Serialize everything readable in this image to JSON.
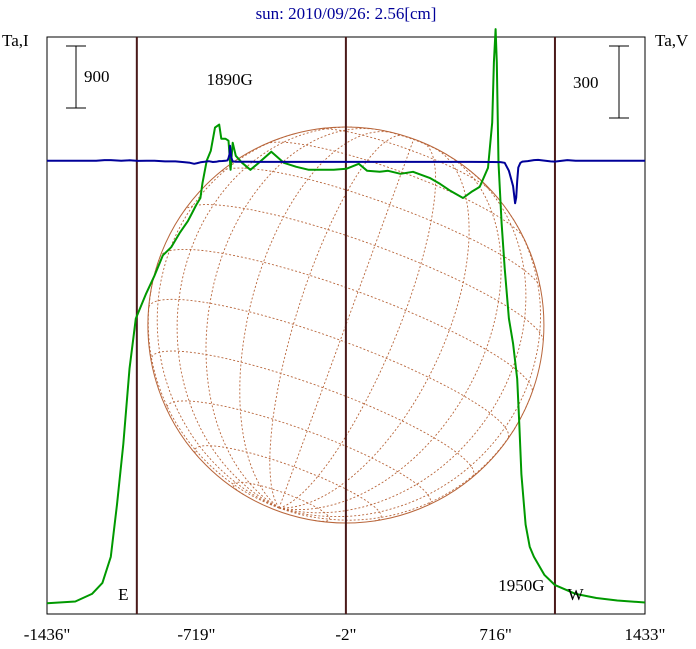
{
  "chart_data": {
    "type": "line",
    "title": "sun: 2010/09/26: 2.56[cm]",
    "left_axis_label": "Ta,I",
    "right_axis_label": "Ta,V",
    "scale_left": {
      "label": "900",
      "value": 900
    },
    "scale_right": {
      "label": "300",
      "value": 300
    },
    "x_range": [
      -1436,
      1433
    ],
    "x_ticks": [
      {
        "value": -1436,
        "label": "-1436\""
      },
      {
        "value": -719,
        "label": "-719\""
      },
      {
        "value": -2,
        "label": "-2\""
      },
      {
        "value": 716,
        "label": "716\""
      },
      {
        "value": 1433,
        "label": "1433\""
      }
    ],
    "vertical_lines": [
      -1005,
      -2,
      1001
    ],
    "annotations": [
      {
        "text": "1890G",
        "x": -560,
        "series": "V"
      },
      {
        "text": "1950G",
        "x": 840,
        "series": "V"
      },
      {
        "text": "E",
        "x": -1070,
        "series": "I"
      },
      {
        "text": "W",
        "x": 1100,
        "series": "I"
      }
    ],
    "disk": {
      "center_x": -2,
      "radius": 950,
      "color": "#b8653a"
    },
    "colors": {
      "stokes_I": "#009900",
      "stokes_V": "#000099",
      "vertical_lines": "#4a1a1a",
      "frame": "#000000"
    },
    "series": [
      {
        "key": "I",
        "unit_scale": 900,
        "baseline_offset": 0,
        "points": [
          [
            -1436,
            18
          ],
          [
            -1300,
            35
          ],
          [
            -1220,
            110
          ],
          [
            -1170,
            220
          ],
          [
            -1130,
            480
          ],
          [
            -1100,
            1000
          ],
          [
            -1070,
            1600
          ],
          [
            -1040,
            2350
          ],
          [
            -1010,
            2850
          ],
          [
            -960,
            3100
          ],
          [
            -920,
            3280
          ],
          [
            -880,
            3480
          ],
          [
            -840,
            3560
          ],
          [
            -800,
            3700
          ],
          [
            -760,
            3820
          ],
          [
            -740,
            3900
          ],
          [
            -720,
            3980
          ],
          [
            -700,
            4050
          ],
          [
            -690,
            4200
          ],
          [
            -670,
            4420
          ],
          [
            -650,
            4520
          ],
          [
            -630,
            4750
          ],
          [
            -610,
            4780
          ],
          [
            -600,
            4640
          ],
          [
            -580,
            4640
          ],
          [
            -565,
            4620
          ],
          [
            -555,
            4330
          ],
          [
            -545,
            4600
          ],
          [
            -530,
            4470
          ],
          [
            -500,
            4400
          ],
          [
            -460,
            4330
          ],
          [
            -420,
            4400
          ],
          [
            -360,
            4510
          ],
          [
            -300,
            4400
          ],
          [
            -240,
            4360
          ],
          [
            -180,
            4330
          ],
          [
            -120,
            4330
          ],
          [
            -60,
            4330
          ],
          [
            0,
            4340
          ],
          [
            60,
            4390
          ],
          [
            100,
            4320
          ],
          [
            160,
            4310
          ],
          [
            200,
            4320
          ],
          [
            260,
            4290
          ],
          [
            320,
            4310
          ],
          [
            400,
            4250
          ],
          [
            450,
            4190
          ],
          [
            500,
            4120
          ],
          [
            560,
            4050
          ],
          [
            600,
            4110
          ],
          [
            640,
            4160
          ],
          [
            680,
            4350
          ],
          [
            700,
            4800
          ],
          [
            708,
            5400
          ],
          [
            716,
            5730
          ],
          [
            722,
            5400
          ],
          [
            730,
            4400
          ],
          [
            745,
            3800
          ],
          [
            760,
            3350
          ],
          [
            780,
            2850
          ],
          [
            800,
            2600
          ],
          [
            820,
            2250
          ],
          [
            830,
            1800
          ],
          [
            840,
            1300
          ],
          [
            860,
            800
          ],
          [
            880,
            580
          ],
          [
            900,
            480
          ],
          [
            950,
            300
          ],
          [
            1000,
            200
          ],
          [
            1100,
            110
          ],
          [
            1200,
            70
          ],
          [
            1300,
            45
          ],
          [
            1433,
            25
          ]
        ]
      },
      {
        "key": "V",
        "unit_scale": 300,
        "baseline_offset": 4420,
        "points": [
          [
            -1436,
            0
          ],
          [
            -1200,
            0
          ],
          [
            -1160,
            20
          ],
          [
            -1130,
            20
          ],
          [
            -1080,
            0
          ],
          [
            -1040,
            15
          ],
          [
            -1000,
            -5
          ],
          [
            -960,
            0
          ],
          [
            -920,
            0
          ],
          [
            -870,
            -20
          ],
          [
            -820,
            -20
          ],
          [
            -780,
            -40
          ],
          [
            -750,
            -60
          ],
          [
            -730,
            -90
          ],
          [
            -715,
            -70
          ],
          [
            -700,
            -45
          ],
          [
            -680,
            -30
          ],
          [
            -660,
            -12
          ],
          [
            -640,
            -35
          ],
          [
            -625,
            -30
          ],
          [
            -610,
            -10
          ],
          [
            -595,
            -8
          ],
          [
            -580,
            0
          ],
          [
            -570,
            10
          ],
          [
            -565,
            80
          ],
          [
            -560,
            210
          ],
          [
            -558,
            450
          ],
          [
            -555,
            300
          ],
          [
            -552,
            100
          ],
          [
            -545,
            -20
          ],
          [
            -530,
            -30
          ],
          [
            -500,
            -28
          ],
          [
            -450,
            -30
          ],
          [
            -400,
            -32
          ],
          [
            -300,
            -32
          ],
          [
            -200,
            -32
          ],
          [
            -100,
            -32
          ],
          [
            0,
            -32
          ],
          [
            100,
            -32
          ],
          [
            200,
            -32
          ],
          [
            300,
            -32
          ],
          [
            400,
            -32
          ],
          [
            500,
            -32
          ],
          [
            600,
            -32
          ],
          [
            700,
            -35
          ],
          [
            740,
            -40
          ],
          [
            760,
            -60
          ],
          [
            780,
            -300
          ],
          [
            800,
            -760
          ],
          [
            810,
            -1270
          ],
          [
            815,
            -1100
          ],
          [
            820,
            -600
          ],
          [
            825,
            -200
          ],
          [
            835,
            -60
          ],
          [
            845,
            -25
          ],
          [
            870,
            -10
          ],
          [
            900,
            20
          ],
          [
            920,
            25
          ],
          [
            950,
            5
          ],
          [
            980,
            -20
          ],
          [
            1000,
            -25
          ],
          [
            1020,
            -10
          ],
          [
            1060,
            20
          ],
          [
            1100,
            0
          ],
          [
            1200,
            0
          ],
          [
            1300,
            0
          ],
          [
            1433,
            0
          ]
        ]
      }
    ]
  }
}
